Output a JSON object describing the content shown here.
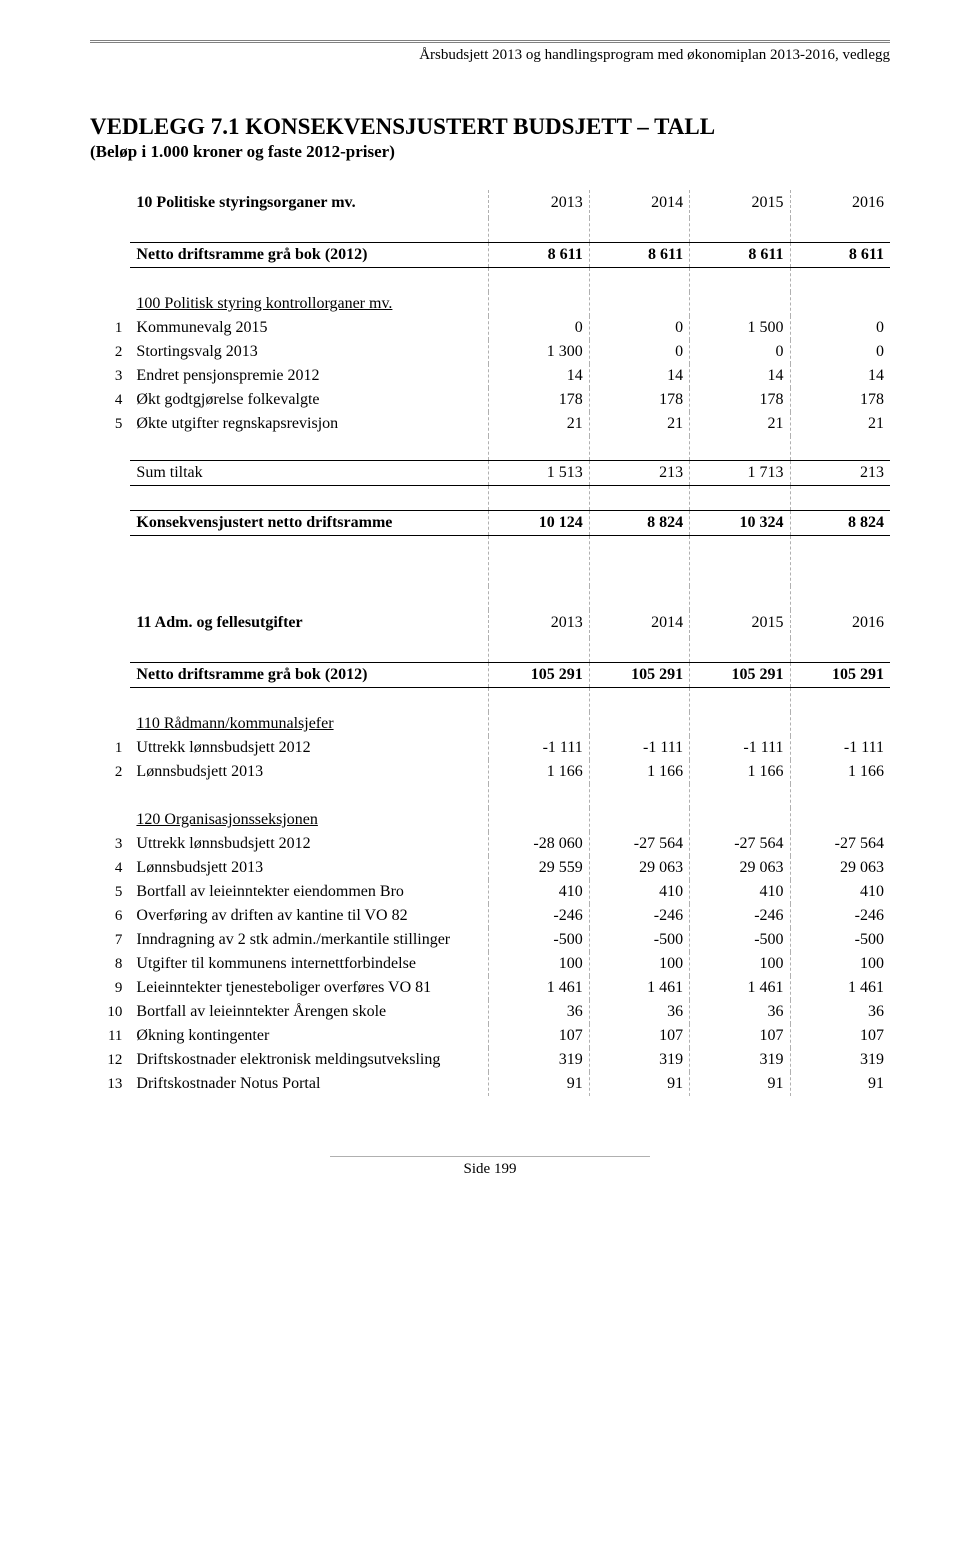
{
  "header": "Årsbudsjett 2013 og handlingsprogram med økonomiplan 2013-2016, vedlegg",
  "title": "VEDLEGG 7.1 KONSEKVENSJUSTERT BUDSJETT – TALL",
  "subtitle": "(Beløp i 1.000 kroner og faste 2012-priser)",
  "years": [
    "2013",
    "2014",
    "2015",
    "2016"
  ],
  "section10": {
    "name": "10 Politiske styringsorganer mv.",
    "netto_label": "Netto driftsramme grå bok (2012)",
    "netto_values": [
      "8 611",
      "8 611",
      "8 611",
      "8 611"
    ],
    "sub100": "100 Politisk styring kontrollorganer mv.",
    "rows": [
      {
        "idx": "1",
        "label": "Kommunevalg 2015",
        "vals": [
          "0",
          "0",
          "1 500",
          "0"
        ]
      },
      {
        "idx": "2",
        "label": "Stortingsvalg 2013",
        "vals": [
          "1 300",
          "0",
          "0",
          "0"
        ]
      },
      {
        "idx": "3",
        "label": "Endret pensjonspremie 2012",
        "vals": [
          "14",
          "14",
          "14",
          "14"
        ]
      },
      {
        "idx": "4",
        "label": "Økt godtgjørelse folkevalgte",
        "vals": [
          "178",
          "178",
          "178",
          "178"
        ]
      },
      {
        "idx": "5",
        "label": "Økte utgifter regnskapsrevisjon",
        "vals": [
          "21",
          "21",
          "21",
          "21"
        ]
      }
    ],
    "sum_label": "Sum tiltak",
    "sum_values": [
      "1 513",
      "213",
      "1 713",
      "213"
    ],
    "kons_label": "Konsekvensjustert netto driftsramme",
    "kons_values": [
      "10 124",
      "8 824",
      "10 324",
      "8 824"
    ]
  },
  "section11": {
    "name": "11 Adm. og fellesutgifter",
    "netto_label": "Netto driftsramme grå bok (2012)",
    "netto_values": [
      "105 291",
      "105 291",
      "105 291",
      "105 291"
    ],
    "sub110": "110 Rådmann/kommunalsjefer",
    "rows110": [
      {
        "idx": "1",
        "label": "Uttrekk lønnsbudsjett 2012",
        "vals": [
          "-1 111",
          "-1 111",
          "-1 111",
          "-1 111"
        ]
      },
      {
        "idx": "2",
        "label": "Lønnsbudsjett 2013",
        "vals": [
          "1 166",
          "1 166",
          "1 166",
          "1 166"
        ]
      }
    ],
    "sub120": "120 Organisasjonsseksjonen",
    "rows120": [
      {
        "idx": "3",
        "label": "Uttrekk lønnsbudsjett 2012",
        "vals": [
          "-28 060",
          "-27 564",
          "-27 564",
          "-27 564"
        ]
      },
      {
        "idx": "4",
        "label": "Lønnsbudsjett 2013",
        "vals": [
          "29 559",
          "29 063",
          "29 063",
          "29 063"
        ]
      },
      {
        "idx": "5",
        "label": "Bortfall av leieinntekter eiendommen Bro",
        "vals": [
          "410",
          "410",
          "410",
          "410"
        ]
      },
      {
        "idx": "6",
        "label": "Overføring av driften av kantine til VO 82",
        "vals": [
          "-246",
          "-246",
          "-246",
          "-246"
        ]
      },
      {
        "idx": "7",
        "label": "Inndragning av 2 stk admin./merkantile stillinger",
        "vals": [
          "-500",
          "-500",
          "-500",
          "-500"
        ]
      },
      {
        "idx": "8",
        "label": "Utgifter til kommunens internettforbindelse",
        "vals": [
          "100",
          "100",
          "100",
          "100"
        ]
      },
      {
        "idx": "9",
        "label": "Leieinntekter tjenesteboliger overføres VO 81",
        "vals": [
          "1 461",
          "1 461",
          "1 461",
          "1 461"
        ]
      },
      {
        "idx": "10",
        "label": "Bortfall av leieinntekter Årengen skole",
        "vals": [
          "36",
          "36",
          "36",
          "36"
        ]
      },
      {
        "idx": "11",
        "label": "Økning kontingenter",
        "vals": [
          "107",
          "107",
          "107",
          "107"
        ]
      },
      {
        "idx": "12",
        "label": "Driftskostnader elektronisk meldingsutveksling",
        "vals": [
          "319",
          "319",
          "319",
          "319"
        ]
      },
      {
        "idx": "13",
        "label": "Driftskostnader Notus Portal",
        "vals": [
          "91",
          "91",
          "91",
          "91"
        ]
      }
    ]
  },
  "footer": "Side 199"
}
